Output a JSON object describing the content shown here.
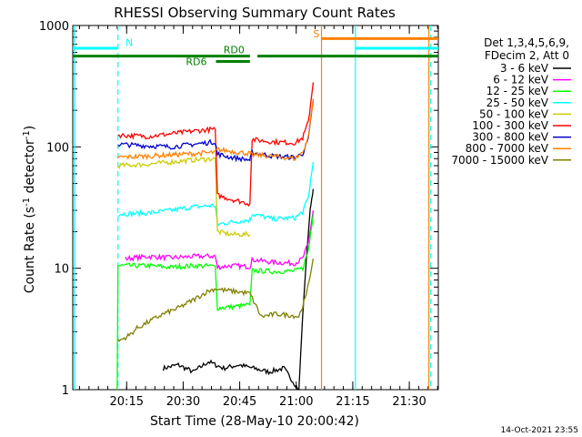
{
  "chart_data": {
    "type": "line",
    "title": "RHESSI Observing Summary Count Rates",
    "xlabel": "Start Time (28-May-10 20:00:42)",
    "ylabel": "Count Rate (s^-1 detector^-1)",
    "ylabel_parts": {
      "main": "Count Rate (s",
      "sup1": "-1",
      "mid": " detector",
      "sup2": "-1",
      "end": ")"
    },
    "y_scale": "log",
    "ylim": [
      1,
      1000
    ],
    "xlim_minutes": [
      0,
      97
    ],
    "x_ticks": [
      {
        "label": "20:15",
        "t": 14.3
      },
      {
        "label": "20:30",
        "t": 29.3
      },
      {
        "label": "20:45",
        "t": 44.3
      },
      {
        "label": "21:00",
        "t": 59.3
      },
      {
        "label": "21:15",
        "t": 74.3
      },
      {
        "label": "21:30",
        "t": 89.3
      }
    ],
    "y_ticks": [
      {
        "label": "1",
        "v": 1
      },
      {
        "label": "10",
        "v": 10
      },
      {
        "label": "100",
        "v": 100
      },
      {
        "label": "1000",
        "v": 1000
      }
    ],
    "legend_header": [
      "Det 1,3,4,5,6,9,",
      "FDecim 2, Att 0"
    ],
    "legend_placement": "right",
    "series": [
      {
        "name": "3 - 6 keV",
        "color": "#000000",
        "x": [
          24,
          28,
          32,
          36,
          40,
          44,
          48,
          52,
          56,
          60,
          61,
          62,
          63,
          63.8
        ],
        "y": [
          1.5,
          1.6,
          1.4,
          1.7,
          1.5,
          1.6,
          1.5,
          1.4,
          1.5,
          1.0,
          4,
          12,
          30,
          45
        ]
      },
      {
        "name": "6 - 12 keV",
        "color": "#ff00ff",
        "x": [
          14,
          20,
          26,
          32,
          37.8,
          38.4,
          42,
          47,
          47.6,
          53,
          59,
          61,
          62.5,
          63.8
        ],
        "y": [
          12,
          12.5,
          12.2,
          12.5,
          12.6,
          10.2,
          10.5,
          10.3,
          11.8,
          11.2,
          11,
          12,
          16,
          30
        ]
      },
      {
        "name": "12 - 25 keV",
        "color": "#00ff00",
        "x": [
          11.8,
          12,
          20,
          26,
          32,
          37.8,
          38.4,
          42,
          47,
          47.6,
          53,
          59,
          61,
          62.5,
          63.8
        ],
        "y": [
          1,
          10.5,
          10.5,
          10.2,
          10.5,
          10.4,
          4.7,
          4.8,
          5.0,
          9.6,
          9.4,
          9.5,
          10,
          14,
          28
        ]
      },
      {
        "name": "25 - 50 keV",
        "color": "#00ffff",
        "x": [
          12,
          20,
          26,
          32,
          37.8,
          38.4,
          42,
          47,
          47.6,
          53,
          59,
          61,
          62.5,
          63.8
        ],
        "y": [
          28,
          28.5,
          30,
          32,
          33,
          23,
          24,
          25,
          28,
          25.5,
          26,
          29,
          38,
          75
        ]
      },
      {
        "name": "50 - 100 keV",
        "color": "#cccc00",
        "x": [
          12,
          20,
          26,
          32,
          37.8,
          38.4,
          42,
          47
        ],
        "y": [
          70,
          72,
          75,
          78,
          80,
          20,
          19,
          19
        ]
      },
      {
        "name": "100 - 300 keV",
        "color": "#ff0000",
        "x": [
          12,
          20,
          26,
          32,
          37.8,
          38.4,
          42,
          47,
          47.6,
          53,
          59,
          61,
          62.5,
          63.8
        ],
        "y": [
          125,
          122,
          128,
          135,
          140,
          40,
          37,
          34,
          115,
          110,
          108,
          118,
          160,
          340
        ]
      },
      {
        "name": "300 - 800 keV",
        "color": "#0000cc",
        "x": [
          12,
          20,
          26,
          32,
          37.8,
          38.4,
          42,
          47,
          47.6,
          53,
          59,
          61,
          62.5,
          63.8
        ],
        "y": [
          105,
          102,
          100,
          105,
          110,
          87,
          82,
          78,
          90,
          84,
          82,
          88,
          115,
          240
        ]
      },
      {
        "name": "800 - 7000 keV",
        "color": "#ff8000",
        "x": [
          12,
          20,
          26,
          32,
          37.8,
          38.4,
          42,
          47,
          47.6,
          53,
          59,
          61,
          62.5,
          63.8
        ],
        "y": [
          82,
          84,
          86,
          88,
          90,
          95,
          92,
          88,
          86,
          84,
          80,
          90,
          120,
          250
        ]
      },
      {
        "name": "7000 - 15000 keV",
        "color": "#808000",
        "x": [
          12,
          15,
          17,
          20,
          24,
          28,
          32,
          36,
          38,
          40,
          44,
          47,
          50,
          54,
          58,
          60,
          62,
          63.8
        ],
        "y": [
          2.5,
          2.8,
          3.2,
          3.6,
          4.2,
          4.7,
          5.5,
          6.5,
          6.8,
          6.6,
          6.4,
          6.2,
          4.0,
          4.2,
          4.1,
          4.0,
          6,
          12
        ]
      }
    ],
    "annotations": {
      "day_bars": [
        {
          "color": "#00ffff",
          "x_start": 0,
          "x_end": 12,
          "v": 650
        },
        {
          "color": "#00ffff",
          "x_start": 75,
          "x_end": 97,
          "v": 650
        }
      ],
      "day_label": {
        "text": "N",
        "color": "#00ffff",
        "t": 14,
        "v": 680
      },
      "saa_bar": {
        "color": "#ff8000",
        "x_start": 66,
        "x_end": 97,
        "v": 780
      },
      "saa_label": {
        "text": "S",
        "color": "#ff8000",
        "t": 63.8,
        "v": 800
      },
      "decim_bars": [
        {
          "color": "#008000",
          "x_start": 0,
          "x_end": 97,
          "v": 560,
          "gap_start": 47,
          "gap_end": 49
        },
        {
          "color": "#008000",
          "x_start": 38,
          "x_end": 47,
          "v": 505
        }
      ],
      "decim_labels": [
        {
          "text": "RD0",
          "color": "#008000",
          "t": 40,
          "v": 590
        },
        {
          "text": "RD6",
          "color": "#008000",
          "t": 30,
          "v": 470
        }
      ],
      "vlines": [
        {
          "t": 0.5,
          "color": "#00ffff",
          "dash": false
        },
        {
          "t": 12,
          "color": "#00ffff",
          "dash": true
        },
        {
          "t": 66,
          "color": "#ff8000",
          "dash": false
        },
        {
          "t": 75,
          "color": "#00ffff",
          "dash": false
        },
        {
          "t": 94.5,
          "color": "#ff8000",
          "dash": false
        },
        {
          "t": 95,
          "color": "#00ffff",
          "dash": true
        }
      ]
    },
    "timestamp": "14-Oct-2021 23:55"
  }
}
